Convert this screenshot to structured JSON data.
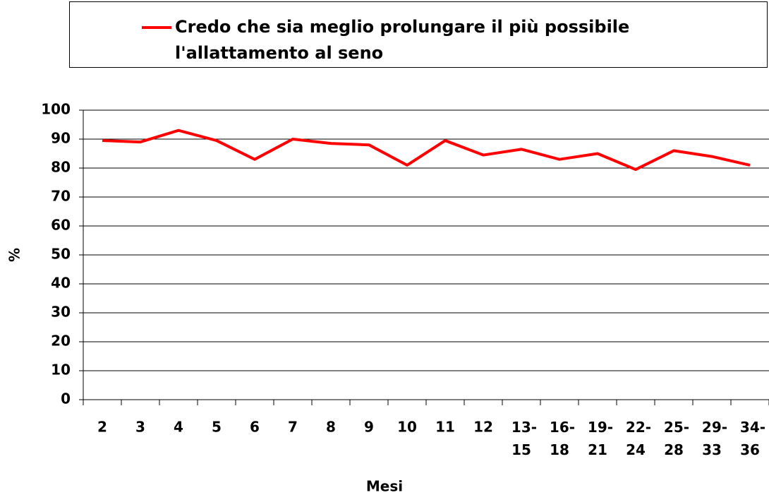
{
  "chart_data": {
    "type": "line",
    "x_label": "Mesi",
    "y_label": "%",
    "categories": [
      "2",
      "3",
      "4",
      "5",
      "6",
      "7",
      "8",
      "9",
      "10",
      "11",
      "12",
      "13-15",
      "16-18",
      "19-21",
      "22-24",
      "25-28",
      "29-33",
      "34-36"
    ],
    "series": [
      {
        "name": "Credo che sia meglio prolungare il più possibile l'allattamento al seno",
        "color": "#ff0000",
        "values": [
          89.5,
          89,
          93,
          89.5,
          83,
          90,
          88.5,
          88,
          81,
          89.5,
          84.5,
          86.5,
          83,
          85,
          79.5,
          86,
          84,
          81
        ]
      }
    ],
    "ylim": [
      0,
      100
    ],
    "yticks": [
      0,
      10,
      20,
      30,
      40,
      50,
      60,
      70,
      80,
      90,
      100
    ],
    "grid": true
  }
}
